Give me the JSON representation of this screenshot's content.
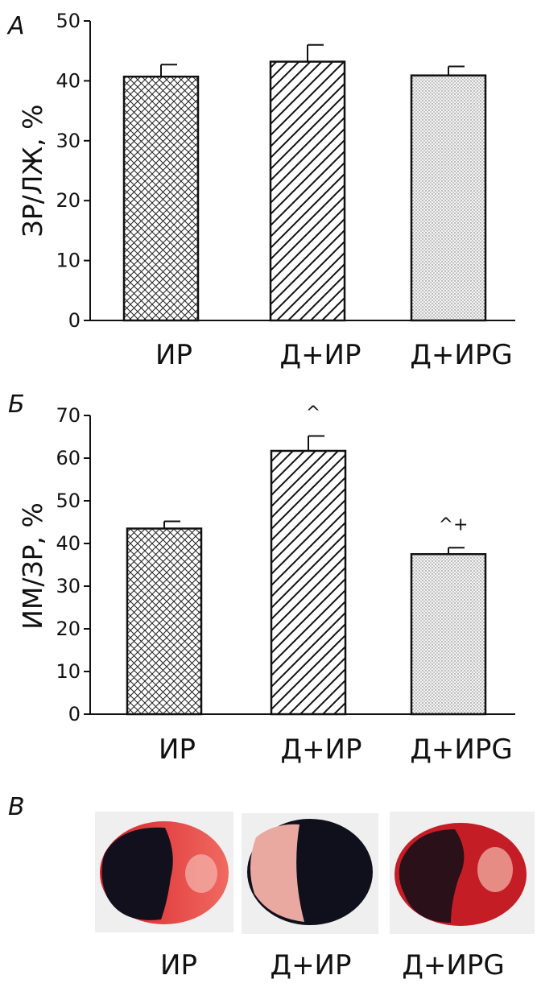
{
  "chart_data": [
    {
      "panel": "А",
      "type": "bar",
      "categories": [
        "ИР",
        "Д+ИР",
        "Д+ИРG"
      ],
      "values": [
        40.7,
        43.2,
        40.9
      ],
      "errors": [
        2.0,
        2.8,
        1.5
      ],
      "patterns": [
        "crosshatch",
        "diagonal",
        "dots"
      ],
      "ylabel": "ЗР/ЛЖ, %",
      "ylim": [
        0,
        50
      ],
      "yticks": [
        0,
        10,
        20,
        30,
        40,
        50
      ],
      "annotations": [
        "",
        "",
        ""
      ]
    },
    {
      "panel": "Б",
      "type": "bar",
      "categories": [
        "ИР",
        "Д+ИР",
        "Д+ИРG"
      ],
      "values": [
        43.5,
        61.7,
        37.5
      ],
      "errors": [
        1.7,
        3.5,
        1.5
      ],
      "patterns": [
        "crosshatch",
        "diagonal",
        "dots"
      ],
      "ylabel": "ИМ/ЗР, %",
      "ylim": [
        0,
        70
      ],
      "yticks": [
        0,
        10,
        20,
        30,
        40,
        50,
        60,
        70
      ],
      "annotations": [
        "",
        "^",
        "^+"
      ]
    }
  ],
  "photos": {
    "panel": "В",
    "labels": [
      "ИР",
      "Д+ИР",
      "Д+ИРG"
    ]
  }
}
